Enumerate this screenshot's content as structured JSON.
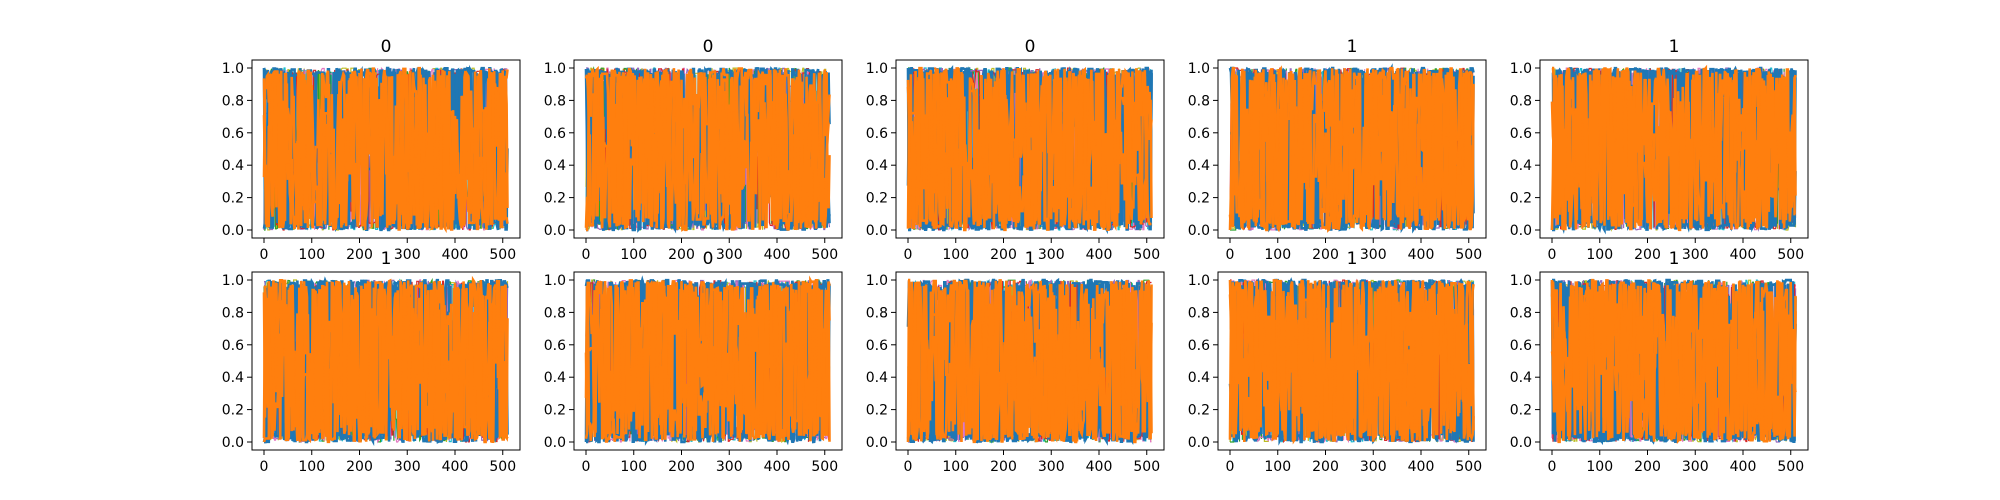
{
  "colors": {
    "background": "#ffffff",
    "series_primary": "#1f77b4",
    "series_secondary": "#ff7f0e",
    "noise": [
      "#17becf",
      "#bcbd22",
      "#2ca02c",
      "#9467bd",
      "#e377c2",
      "#d62728"
    ]
  },
  "chart_data": [
    {
      "type": "line",
      "title": "0",
      "xlim": [
        0,
        511
      ],
      "ylim": [
        0,
        1
      ],
      "xticks": [
        0,
        100,
        200,
        300,
        400,
        500
      ],
      "yticks": [
        0.0,
        0.2,
        0.4,
        0.6,
        0.8,
        1.0
      ],
      "xlabel": "",
      "ylabel": "",
      "grid": false,
      "x_range": [
        0,
        511
      ],
      "series_value_range": [
        0,
        1
      ],
      "series_count": "many (dense overlapping lines, blue and orange dominant)"
    },
    {
      "type": "line",
      "title": "0",
      "xlim": [
        0,
        511
      ],
      "ylim": [
        0,
        1
      ],
      "xticks": [
        0,
        100,
        200,
        300,
        400,
        500
      ],
      "yticks": [
        0.0,
        0.2,
        0.4,
        0.6,
        0.8,
        1.0
      ],
      "xlabel": "",
      "ylabel": "",
      "grid": false,
      "x_range": [
        0,
        511
      ],
      "series_value_range": [
        0,
        1
      ],
      "series_count": "many (dense overlapping lines, blue and orange dominant)"
    },
    {
      "type": "line",
      "title": "0",
      "xlim": [
        0,
        511
      ],
      "ylim": [
        0,
        1
      ],
      "xticks": [
        0,
        100,
        200,
        300,
        400,
        500
      ],
      "yticks": [
        0.0,
        0.2,
        0.4,
        0.6,
        0.8,
        1.0
      ],
      "xlabel": "",
      "ylabel": "",
      "grid": false,
      "x_range": [
        0,
        511
      ],
      "series_value_range": [
        0,
        1
      ],
      "series_count": "many (dense overlapping lines, blue and orange dominant)"
    },
    {
      "type": "line",
      "title": "1",
      "xlim": [
        0,
        511
      ],
      "ylim": [
        0,
        1
      ],
      "xticks": [
        0,
        100,
        200,
        300,
        400,
        500
      ],
      "yticks": [
        0.0,
        0.2,
        0.4,
        0.6,
        0.8,
        1.0
      ],
      "xlabel": "",
      "ylabel": "",
      "grid": false,
      "x_range": [
        0,
        511
      ],
      "series_value_range": [
        0,
        1
      ],
      "series_count": "many (dense overlapping lines, blue and orange dominant)"
    },
    {
      "type": "line",
      "title": "1",
      "xlim": [
        0,
        511
      ],
      "ylim": [
        0,
        1
      ],
      "xticks": [
        0,
        100,
        200,
        300,
        400,
        500
      ],
      "yticks": [
        0.0,
        0.2,
        0.4,
        0.6,
        0.8,
        1.0
      ],
      "xlabel": "",
      "ylabel": "",
      "grid": false,
      "x_range": [
        0,
        511
      ],
      "series_value_range": [
        0,
        1
      ],
      "series_count": "many (dense overlapping lines, blue and orange dominant)"
    },
    {
      "type": "line",
      "title": "1",
      "xlim": [
        0,
        511
      ],
      "ylim": [
        0,
        1
      ],
      "xticks": [
        0,
        100,
        200,
        300,
        400,
        500
      ],
      "yticks": [
        0.0,
        0.2,
        0.4,
        0.6,
        0.8,
        1.0
      ],
      "xlabel": "",
      "ylabel": "",
      "grid": false,
      "x_range": [
        0,
        511
      ],
      "series_value_range": [
        0,
        1
      ],
      "series_count": "many (dense overlapping lines, blue and orange dominant)"
    },
    {
      "type": "line",
      "title": "0",
      "xlim": [
        0,
        511
      ],
      "ylim": [
        0,
        1
      ],
      "xticks": [
        0,
        100,
        200,
        300,
        400,
        500
      ],
      "yticks": [
        0.0,
        0.2,
        0.4,
        0.6,
        0.8,
        1.0
      ],
      "xlabel": "",
      "ylabel": "",
      "grid": false,
      "x_range": [
        0,
        511
      ],
      "series_value_range": [
        0,
        1
      ],
      "series_count": "many (dense overlapping lines, blue and orange dominant)"
    },
    {
      "type": "line",
      "title": "1",
      "xlim": [
        0,
        511
      ],
      "ylim": [
        0,
        1
      ],
      "xticks": [
        0,
        100,
        200,
        300,
        400,
        500
      ],
      "yticks": [
        0.0,
        0.2,
        0.4,
        0.6,
        0.8,
        1.0
      ],
      "xlabel": "",
      "ylabel": "",
      "grid": false,
      "x_range": [
        0,
        511
      ],
      "series_value_range": [
        0,
        1
      ],
      "series_count": "many (dense overlapping lines, blue and orange dominant)"
    },
    {
      "type": "line",
      "title": "1",
      "xlim": [
        0,
        511
      ],
      "ylim": [
        0,
        1
      ],
      "xticks": [
        0,
        100,
        200,
        300,
        400,
        500
      ],
      "yticks": [
        0.0,
        0.2,
        0.4,
        0.6,
        0.8,
        1.0
      ],
      "xlabel": "",
      "ylabel": "",
      "grid": false,
      "x_range": [
        0,
        511
      ],
      "series_value_range": [
        0,
        1
      ],
      "series_count": "many (dense overlapping lines, blue and orange dominant)"
    },
    {
      "type": "line",
      "title": "1",
      "xlim": [
        0,
        511
      ],
      "ylim": [
        0,
        1
      ],
      "xticks": [
        0,
        100,
        200,
        300,
        400,
        500
      ],
      "yticks": [
        0.0,
        0.2,
        0.4,
        0.6,
        0.8,
        1.0
      ],
      "xlabel": "",
      "ylabel": "",
      "grid": false,
      "x_range": [
        0,
        511
      ],
      "series_value_range": [
        0,
        1
      ],
      "series_count": "many (dense overlapping lines, blue and orange dominant)"
    }
  ]
}
